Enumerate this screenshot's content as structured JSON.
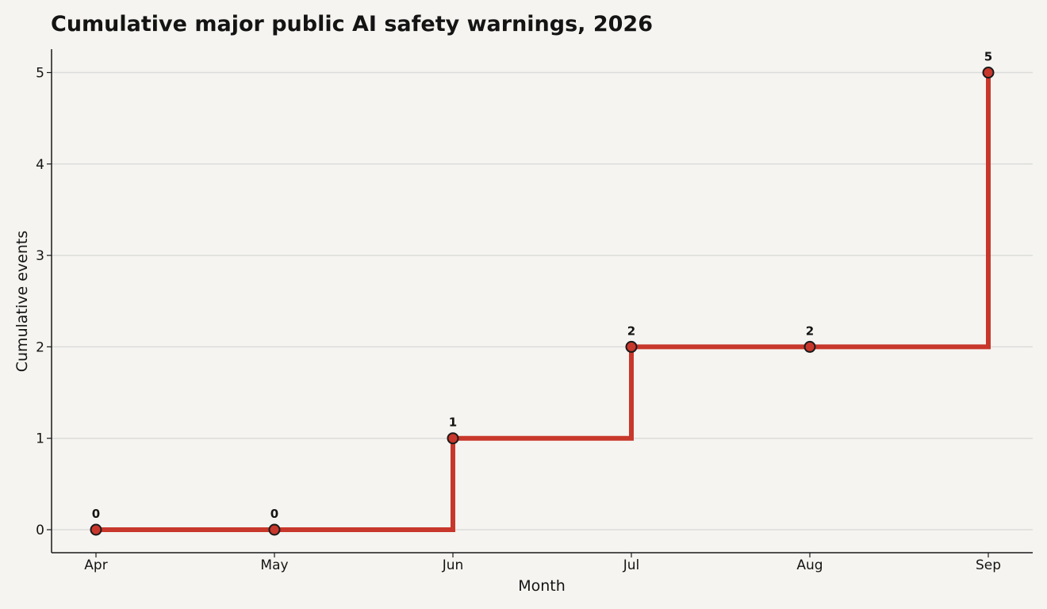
{
  "chart_data": {
    "type": "line",
    "step": "post",
    "title": "Cumulative major public AI safety warnings, 2026",
    "xlabel": "Month",
    "ylabel": "Cumulative events",
    "categories": [
      "Apr",
      "May",
      "Jun",
      "Jul",
      "Aug",
      "Sep"
    ],
    "series": [
      {
        "values": [
          0,
          0,
          1,
          2,
          2,
          5
        ]
      }
    ],
    "data_labels": [
      "0",
      "0",
      "1",
      "2",
      "2",
      "5"
    ],
    "yticks": [
      0,
      1,
      2,
      3,
      4,
      5
    ],
    "ytick_labels": [
      "0",
      "1",
      "2",
      "3",
      "4",
      "5"
    ],
    "grid": "horizontal",
    "colors": {
      "line": "#c8372b",
      "marker_edge": "#1a1a1a",
      "grid": "#dcdcdc",
      "axis": "#1a1a1a",
      "background": "#f5f4f0"
    }
  }
}
